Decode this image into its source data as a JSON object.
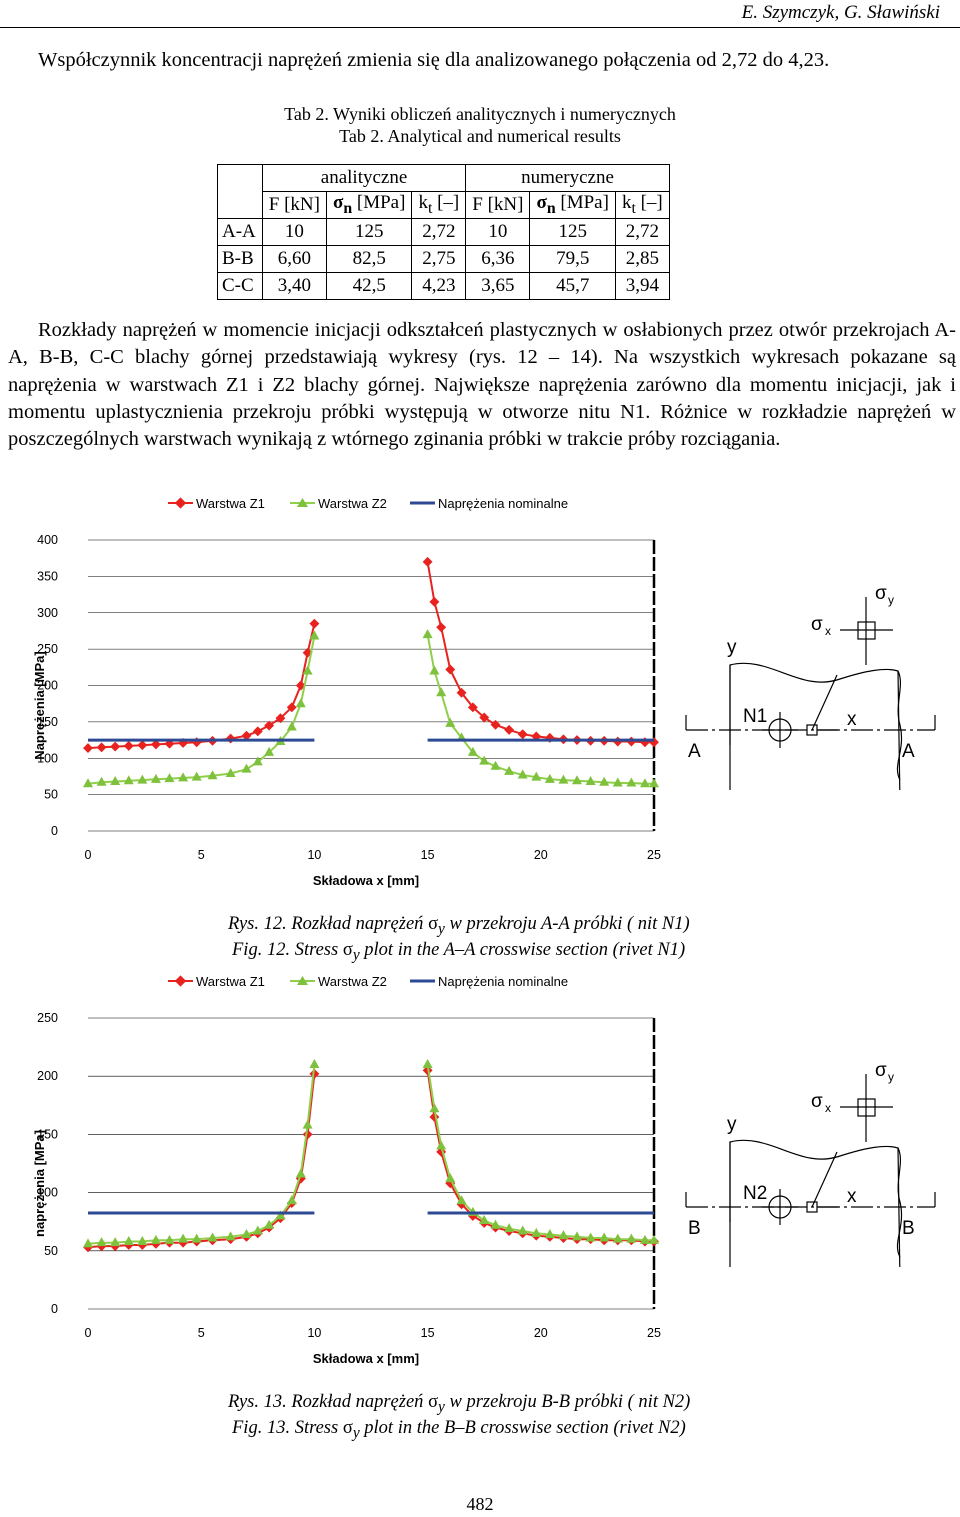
{
  "header": {
    "running_head": "E. Szymczyk, G. Sławiński"
  },
  "paragraphs": {
    "p1": "Współczynnik koncentracji naprężeń zmienia się dla analizowanego połączenia od 2,72 do 4,23.",
    "p2": "Rozkłady naprężeń w momencie inicjacji odkształceń plastycznych w osłabionych przez otwór przekrojach A-A, B-B, C-C blachy górnej przedstawiają wykresy (rys. 12 – 14). Na wszystkich wykresach pokazane są naprężenia w warstwach Z1 i Z2 blachy górnej. Największe naprężenia zarówno dla momentu inicjacji, jak i momentu uplastycznienia przekroju próbki występują w otworze nitu N1. Różnice w rozkładzie naprężeń w poszczególnych warstwach wynikają z wtórnego zginania próbki w trakcie próby rozciągania."
  },
  "table": {
    "caption_pl": "Tab 2. Wyniki obliczeń analitycznych i numerycznych",
    "caption_en": "Tab 2. Analytical and numerical results",
    "group_headers": [
      "analityczne",
      "numeryczne"
    ],
    "col_headers": [
      "F [kN]",
      "σ",
      "n",
      " [MPa]",
      "k",
      "t",
      " [–]"
    ],
    "rows": [
      {
        "label": "A-A",
        "cells": [
          "10",
          "125",
          "2,72",
          "10",
          "125",
          "2,72"
        ]
      },
      {
        "label": "B-B",
        "cells": [
          "6,60",
          "82,5",
          "2,75",
          "6,36",
          "79,5",
          "2,85"
        ]
      },
      {
        "label": "C-C",
        "cells": [
          "3,40",
          "42,5",
          "4,23",
          "3,65",
          "45,7",
          "3,94"
        ]
      }
    ]
  },
  "figures": {
    "fig12": {
      "caption_pl_a": "Rys. 12. Rozkład naprężeń ",
      "caption_pl_b": " w przekroju A-A próbki ( nit N1)",
      "caption_en_a": "Fig. 12. Stress ",
      "caption_en_b": " plot in the A–A crosswise section (rivet N1)",
      "sigma": "σ",
      "sub_y": "y",
      "diagram": {
        "section": "A",
        "rivet": "N1",
        "y": "y",
        "x": "x",
        "sx": "σ",
        "sx_sub": "x",
        "sy": "σ",
        "sy_sub": "y"
      }
    },
    "fig13": {
      "caption_pl_a": "Rys. 13. Rozkład naprężeń ",
      "caption_pl_b": " w przekroju B-B próbki ( nit N2)",
      "caption_en_a": "Fig. 13. Stress ",
      "caption_en_b": " plot in the B–B crosswise section (rivet N2)",
      "sigma": "σ",
      "sub_y": "y",
      "diagram": {
        "section": "B",
        "rivet": "N2",
        "y": "y",
        "x": "x",
        "sx": "σ",
        "sx_sub": "x",
        "sy": "σ",
        "sy_sub": "y"
      }
    }
  },
  "colors": {
    "z1": "#e8231f",
    "z1_marker": "#e8231f",
    "z2": "#8fcf4a",
    "z2_marker": "#7ec13d",
    "nominal": "#2e4a94"
  },
  "chart_data": [
    {
      "type": "line",
      "legend": [
        "Warstwa Z1",
        "Warstwa Z2",
        "Naprężenia nominalne"
      ],
      "legend_placement": "top",
      "xlabel": "Składowa x [mm]",
      "ylabel": "Naprężenia [MPa]",
      "xlim": [
        0,
        25
      ],
      "ylim": [
        0,
        400
      ],
      "xticks": [
        "0",
        "5",
        "10",
        "15",
        "20",
        "25"
      ],
      "yticks": [
        "0",
        "50",
        "100",
        "150",
        "200",
        "250",
        "300",
        "350",
        "400"
      ],
      "grid": "horizontal",
      "series": [
        {
          "name": "Warstwa Z1",
          "segments": [
            {
              "x": [
                0.0,
                0.6,
                1.2,
                1.8,
                2.4,
                3.0,
                3.6,
                4.2,
                4.8,
                5.5,
                6.3,
                7.0,
                7.5,
                8.0,
                8.5,
                9.0,
                9.4,
                9.7,
                10.0
              ],
              "y": [
                114,
                115,
                116,
                117,
                118,
                119,
                120,
                121,
                122,
                124,
                127,
                131,
                137,
                145,
                155,
                170,
                200,
                245,
                285
              ]
            },
            {
              "x": [
                15.0,
                15.3,
                15.6,
                16.0,
                16.5,
                17.0,
                17.5,
                18.0,
                18.6,
                19.2,
                19.8,
                20.4,
                21.0,
                21.6,
                22.2,
                22.8,
                23.4,
                24.0,
                24.6,
                25.0
              ],
              "y": [
                370,
                315,
                280,
                222,
                190,
                170,
                156,
                146,
                139,
                133,
                130,
                128,
                126,
                125,
                124,
                124,
                123,
                123,
                122,
                122
              ]
            }
          ]
        },
        {
          "name": "Warstwa Z2",
          "segments": [
            {
              "x": [
                0.0,
                0.6,
                1.2,
                1.8,
                2.4,
                3.0,
                3.6,
                4.2,
                4.8,
                5.5,
                6.3,
                7.0,
                7.5,
                8.0,
                8.5,
                9.0,
                9.4,
                9.7,
                10.0
              ],
              "y": [
                65,
                67,
                68,
                69,
                70,
                71,
                72,
                73,
                74,
                76,
                79,
                85,
                95,
                108,
                123,
                143,
                175,
                220,
                268
              ]
            },
            {
              "x": [
                15.0,
                15.3,
                15.6,
                16.0,
                16.5,
                17.0,
                17.5,
                18.0,
                18.6,
                19.2,
                19.8,
                20.4,
                21.0,
                21.6,
                22.2,
                22.8,
                23.4,
                24.0,
                24.6,
                25.0
              ],
              "y": [
                270,
                220,
                190,
                148,
                128,
                108,
                96,
                89,
                82,
                77,
                74,
                71,
                70,
                69,
                68,
                67,
                66,
                66,
                65,
                65
              ]
            }
          ]
        },
        {
          "name": "Naprężenia nominalne",
          "segments": [
            {
              "x": [
                0,
                10
              ],
              "y": [
                125,
                125
              ]
            },
            {
              "x": [
                15,
                25
              ],
              "y": [
                125,
                125
              ]
            }
          ]
        }
      ]
    },
    {
      "type": "line",
      "legend": [
        "Warstwa Z1",
        "Warstwa Z2",
        "Naprężenia nominalne"
      ],
      "legend_placement": "top",
      "xlabel": "Składowa x [mm]",
      "ylabel": "naprężenia [MPa]",
      "xlim": [
        0,
        25
      ],
      "ylim": [
        0,
        250
      ],
      "xticks": [
        "0",
        "5",
        "10",
        "15",
        "20",
        "25"
      ],
      "yticks": [
        "0",
        "50",
        "100",
        "150",
        "200",
        "250"
      ],
      "grid": "horizontal",
      "series": [
        {
          "name": "Warstwa Z1",
          "segments": [
            {
              "x": [
                0.0,
                0.6,
                1.2,
                1.8,
                2.4,
                3.0,
                3.6,
                4.2,
                4.8,
                5.5,
                6.3,
                7.0,
                7.5,
                8.0,
                8.5,
                9.0,
                9.4,
                9.7,
                10.0
              ],
              "y": [
                53,
                54,
                54,
                55,
                55,
                56,
                57,
                57,
                58,
                59,
                60,
                62,
                65,
                70,
                78,
                91,
                112,
                150,
                202
              ]
            },
            {
              "x": [
                15.0,
                15.3,
                15.6,
                16.0,
                16.5,
                17.0,
                17.5,
                18.0,
                18.6,
                19.2,
                19.8,
                20.4,
                21.0,
                21.6,
                22.2,
                22.8,
                23.4,
                24.0,
                24.6,
                25.0
              ],
              "y": [
                205,
                165,
                135,
                108,
                90,
                80,
                74,
                70,
                67,
                65,
                63,
                62,
                61,
                60,
                60,
                59,
                59,
                59,
                58,
                58
              ]
            }
          ]
        },
        {
          "name": "Warstwa Z2",
          "segments": [
            {
              "x": [
                0.0,
                0.6,
                1.2,
                1.8,
                2.4,
                3.0,
                3.6,
                4.2,
                4.8,
                5.5,
                6.3,
                7.0,
                7.5,
                8.0,
                8.5,
                9.0,
                9.4,
                9.7,
                10.0
              ],
              "y": [
                56,
                57,
                57,
                58,
                58,
                59,
                59,
                60,
                60,
                61,
                62,
                64,
                67,
                72,
                80,
                93,
                116,
                158,
                210
              ]
            },
            {
              "x": [
                15.0,
                15.3,
                15.6,
                16.0,
                16.5,
                17.0,
                17.5,
                18.0,
                18.6,
                19.2,
                19.8,
                20.4,
                21.0,
                21.6,
                22.2,
                22.8,
                23.4,
                24.0,
                24.6,
                25.0
              ],
              "y": [
                210,
                172,
                140,
                112,
                93,
                83,
                76,
                72,
                69,
                67,
                65,
                64,
                63,
                62,
                61,
                61,
                60,
                60,
                59,
                59
              ]
            }
          ]
        },
        {
          "name": "Naprężenia nominalne",
          "segments": [
            {
              "x": [
                0,
                10
              ],
              "y": [
                82.5,
                82.5
              ]
            },
            {
              "x": [
                15,
                25
              ],
              "y": [
                82.5,
                82.5
              ]
            }
          ]
        }
      ]
    }
  ]
}
